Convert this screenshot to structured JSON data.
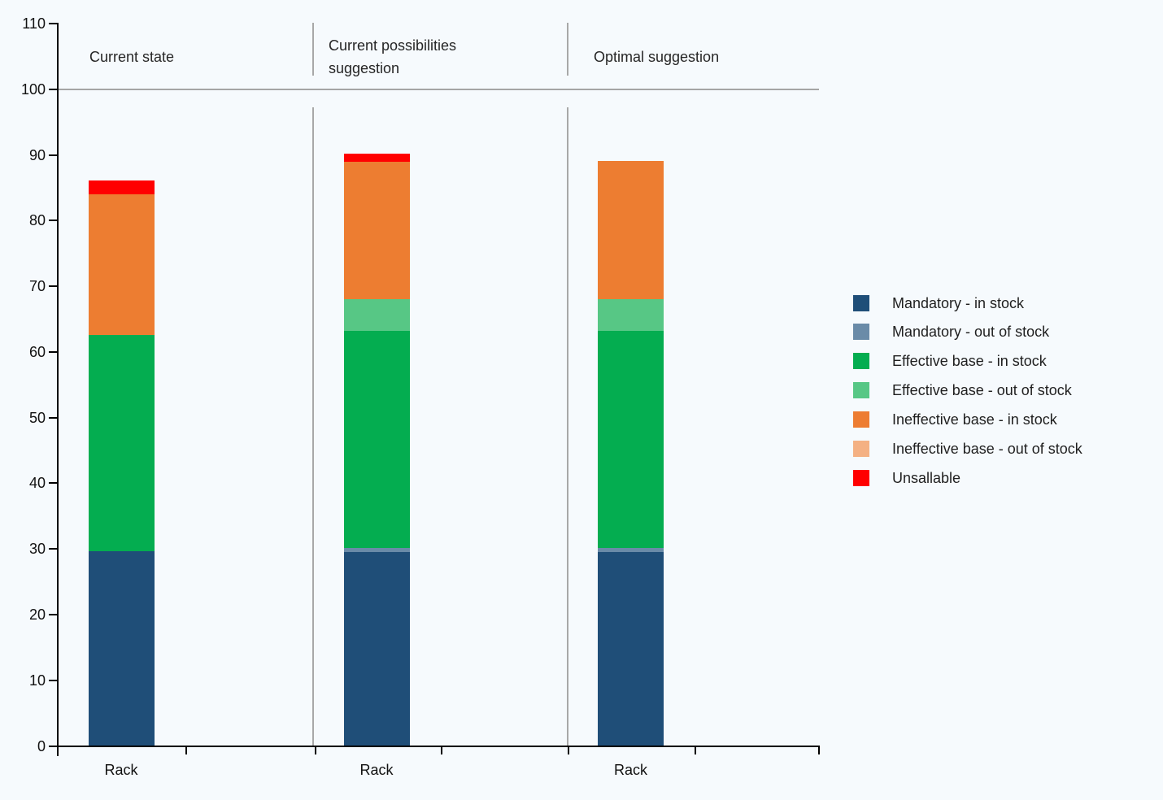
{
  "chart_data": {
    "type": "stacked-bar",
    "title": "",
    "xlabel": "",
    "ylabel": "",
    "ylim": [
      0,
      110
    ],
    "yticks": [
      0,
      10,
      20,
      30,
      40,
      50,
      60,
      70,
      80,
      90,
      100,
      110
    ],
    "reference_line": 100,
    "grid": false,
    "legend_position": "right",
    "panels": [
      {
        "title": "Current state",
        "category": "Rack"
      },
      {
        "title": "Current possibilities suggestion",
        "category": "Rack"
      },
      {
        "title": "Optimal suggestion",
        "category": "Rack"
      }
    ],
    "series": [
      {
        "label": "Mandatory - in stock",
        "color": "#1f4e78",
        "values": [
          29.6,
          29.5,
          29.5
        ]
      },
      {
        "label": "Mandatory - out of stock",
        "color": "#6a8ba8",
        "values": [
          0,
          0.6,
          0.6
        ]
      },
      {
        "label": "Effective base - in stock",
        "color": "#04ad50",
        "values": [
          33.0,
          33.1,
          33.1
        ]
      },
      {
        "label": "Effective base - out of stock",
        "color": "#57c785",
        "values": [
          0,
          4.8,
          4.8
        ]
      },
      {
        "label": "Ineffective base - in stock",
        "color": "#ed7d31",
        "values": [
          21.4,
          21.0,
          21.1
        ]
      },
      {
        "label": "Ineffective base - out of stock",
        "color": "#f4b183",
        "values": [
          0,
          0,
          0
        ]
      },
      {
        "label": "Unsallable",
        "color": "#ff0000",
        "values": [
          2.1,
          1.2,
          0
        ]
      }
    ],
    "bar_totals": [
      86.1,
      90.2,
      89.1
    ]
  }
}
